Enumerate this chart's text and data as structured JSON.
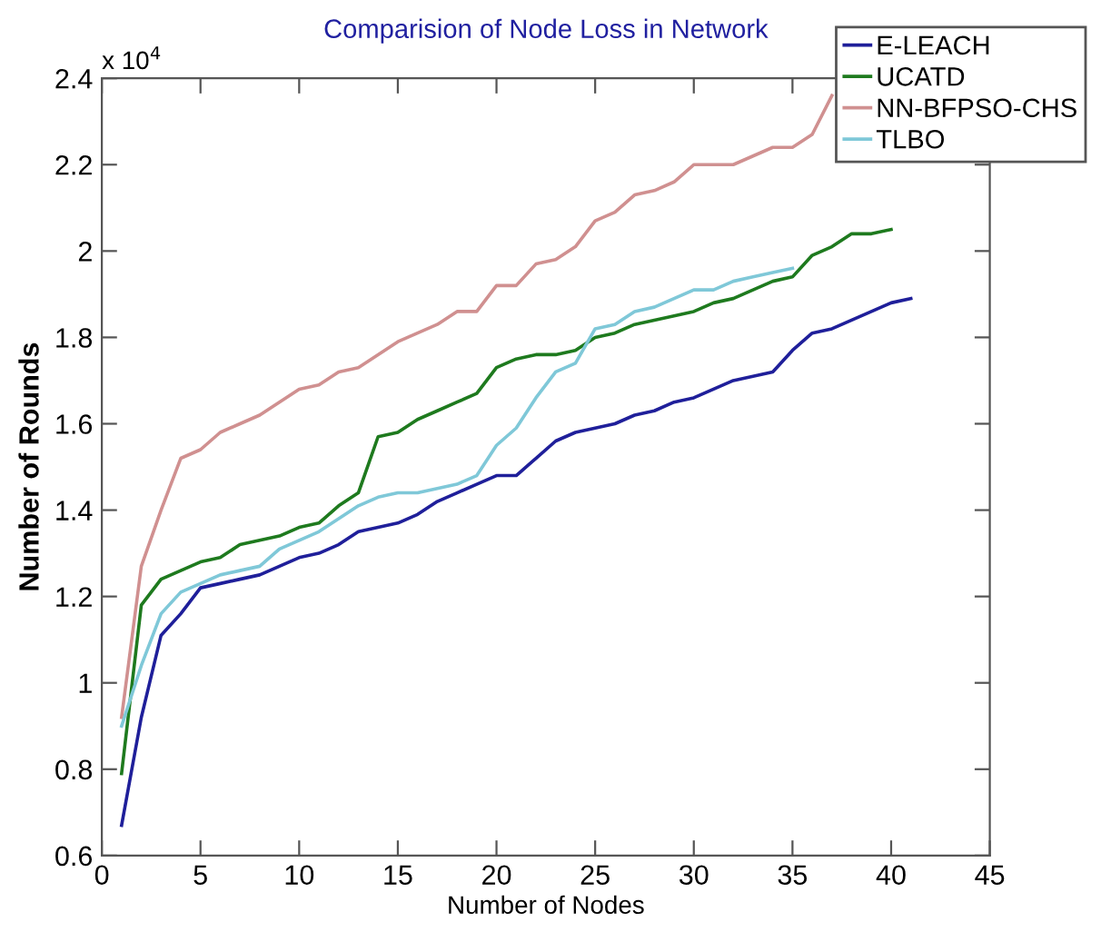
{
  "chart_data": {
    "type": "line",
    "title": "Comparision of Node Loss in Network",
    "xlabel": "Number of Nodes",
    "ylabel": "Number of Rounds",
    "annotations": [
      "x 10$^{4}$"
    ],
    "xlim": [
      0,
      45
    ],
    "xticks": [
      0,
      5,
      10,
      15,
      20,
      25,
      30,
      35,
      40,
      45
    ],
    "ylim": [
      0.6,
      2.4
    ],
    "yticks": [
      0.6,
      0.8,
      1,
      1.2,
      1.4,
      1.6,
      1.8,
      2,
      2.2,
      2.4
    ],
    "grid": false,
    "legend": "top right",
    "marker": "none",
    "line_style": "solid",
    "series": [
      {
        "name": "E-LEACH",
        "color": "#1f1f9a",
        "x": [
          1,
          2,
          3,
          4,
          5,
          6,
          7,
          8,
          9,
          10,
          11,
          12,
          13,
          14,
          15,
          16,
          17,
          18,
          19,
          20,
          21,
          22,
          23,
          24,
          25,
          26,
          27,
          28,
          29,
          30,
          31,
          32,
          33,
          34,
          35,
          36,
          37,
          38,
          39,
          40,
          41
        ],
        "values": [
          0.67,
          0.92,
          1.11,
          1.16,
          1.22,
          1.23,
          1.24,
          1.25,
          1.27,
          1.29,
          1.3,
          1.32,
          1.35,
          1.36,
          1.37,
          1.39,
          1.42,
          1.44,
          1.46,
          1.48,
          1.48,
          1.52,
          1.56,
          1.58,
          1.59,
          1.6,
          1.62,
          1.63,
          1.65,
          1.66,
          1.68,
          1.7,
          1.71,
          1.72,
          1.77,
          1.81,
          1.82,
          1.84,
          1.86,
          1.88,
          1.89
        ]
      },
      {
        "name": "UCATD",
        "color": "#1e7a1e",
        "x": [
          1,
          2,
          3,
          4,
          5,
          6,
          7,
          8,
          9,
          10,
          11,
          12,
          13,
          14,
          15,
          16,
          17,
          18,
          19,
          20,
          21,
          22,
          23,
          24,
          25,
          26,
          27,
          28,
          29,
          30,
          31,
          32,
          33,
          34,
          35,
          36,
          37,
          38,
          39,
          40
        ],
        "values": [
          0.79,
          1.18,
          1.24,
          1.26,
          1.28,
          1.29,
          1.32,
          1.33,
          1.34,
          1.36,
          1.37,
          1.41,
          1.44,
          1.57,
          1.58,
          1.61,
          1.63,
          1.65,
          1.67,
          1.73,
          1.75,
          1.76,
          1.76,
          1.77,
          1.8,
          1.81,
          1.83,
          1.84,
          1.85,
          1.86,
          1.88,
          1.89,
          1.91,
          1.93,
          1.94,
          1.99,
          2.01,
          2.04,
          2.04,
          2.05
        ]
      },
      {
        "name": "NN-BFPSO-CHS",
        "color": "#d09090",
        "x": [
          1,
          2,
          3,
          4,
          5,
          6,
          7,
          8,
          9,
          10,
          11,
          12,
          13,
          14,
          15,
          16,
          17,
          18,
          19,
          20,
          21,
          22,
          23,
          24,
          25,
          26,
          27,
          28,
          29,
          30,
          31,
          32,
          33,
          34,
          35,
          36,
          37
        ],
        "values": [
          0.92,
          1.27,
          1.4,
          1.52,
          1.54,
          1.58,
          1.6,
          1.62,
          1.65,
          1.68,
          1.69,
          1.72,
          1.73,
          1.76,
          1.79,
          1.81,
          1.83,
          1.86,
          1.86,
          1.92,
          1.92,
          1.97,
          1.98,
          2.01,
          2.07,
          2.09,
          2.13,
          2.14,
          2.16,
          2.2,
          2.2,
          2.2,
          2.22,
          2.24,
          2.24,
          2.27,
          2.36
        ]
      },
      {
        "name": "TLBO",
        "color": "#7fc8d8",
        "x": [
          1,
          2,
          3,
          4,
          5,
          6,
          7,
          8,
          9,
          10,
          11,
          12,
          13,
          14,
          15,
          16,
          17,
          18,
          19,
          20,
          21,
          22,
          23,
          24,
          25,
          26,
          27,
          28,
          29,
          30,
          31,
          32,
          33,
          34,
          35
        ],
        "values": [
          0.9,
          1.04,
          1.16,
          1.21,
          1.23,
          1.25,
          1.26,
          1.27,
          1.31,
          1.33,
          1.35,
          1.38,
          1.41,
          1.43,
          1.44,
          1.44,
          1.45,
          1.46,
          1.48,
          1.55,
          1.59,
          1.66,
          1.72,
          1.74,
          1.82,
          1.83,
          1.86,
          1.87,
          1.89,
          1.91,
          1.91,
          1.93,
          1.94,
          1.95,
          1.96
        ]
      }
    ]
  }
}
